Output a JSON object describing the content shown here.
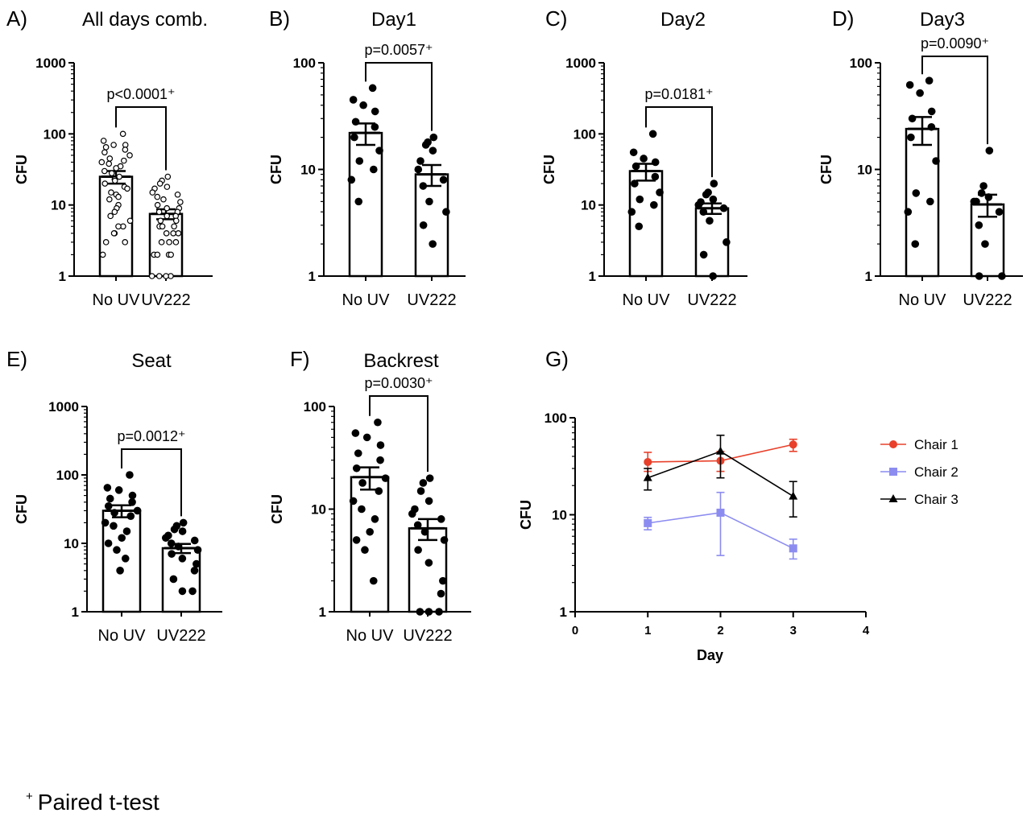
{
  "footnote": {
    "marker": "+",
    "text": "Paired t-test"
  },
  "chart_data": [
    {
      "id": "A",
      "panel_label": "A)",
      "title": "All days comb.",
      "type": "bar",
      "ylabel": "CFU",
      "yscale": "log",
      "ylim": [
        1,
        1000
      ],
      "yticks": [
        "1",
        "10",
        "100",
        "1000"
      ],
      "categories": [
        "No UV",
        "UV222"
      ],
      "series": [
        {
          "values": [
            25,
            7.5
          ],
          "sem": [
            5,
            1.2
          ]
        }
      ],
      "points": [
        [
          100,
          80,
          70,
          70,
          65,
          60,
          55,
          50,
          45,
          42,
          40,
          38,
          35,
          33,
          30,
          28,
          25,
          23,
          22,
          20,
          18,
          17,
          15,
          14,
          13,
          12,
          10,
          9,
          8,
          7,
          6,
          5,
          5,
          4,
          4,
          3,
          2,
          3
        ],
        [
          25,
          22,
          20,
          18,
          17,
          15,
          14,
          13,
          12,
          11,
          10,
          9,
          9,
          8,
          8,
          7,
          7,
          6,
          6,
          5,
          5,
          5,
          4,
          4,
          4,
          3,
          3,
          3,
          2,
          2,
          2,
          2,
          1,
          1,
          1,
          1
        ]
      ],
      "markers": "open",
      "comparison": {
        "text": "p<0.0001⁺"
      }
    },
    {
      "id": "B",
      "panel_label": "B)",
      "title": "Day1",
      "type": "bar",
      "ylabel": "CFU",
      "yscale": "log",
      "ylim": [
        1,
        100
      ],
      "yticks": [
        "1",
        "10",
        "100"
      ],
      "categories": [
        "No UV",
        "UV222"
      ],
      "series": [
        {
          "values": [
            22,
            9
          ],
          "sem": [
            5,
            2
          ]
        }
      ],
      "points": [
        [
          58,
          45,
          40,
          35,
          28,
          25,
          20,
          15,
          12,
          10,
          8,
          5
        ],
        [
          20,
          18,
          17,
          15,
          12,
          10,
          8,
          7,
          5,
          4,
          3,
          2
        ]
      ],
      "markers": "filled",
      "comparison": {
        "text": "p=0.0057⁺"
      }
    },
    {
      "id": "C",
      "panel_label": "C)",
      "title": "Day2",
      "type": "bar",
      "ylabel": "CFU",
      "yscale": "log",
      "ylim": [
        1,
        1000
      ],
      "yticks": [
        "1",
        "10",
        "100",
        "1000"
      ],
      "categories": [
        "No UV",
        "UV222"
      ],
      "series": [
        {
          "values": [
            30,
            9
          ],
          "sem": [
            8,
            1.5
          ]
        }
      ],
      "points": [
        [
          100,
          55,
          45,
          40,
          35,
          25,
          20,
          15,
          12,
          10,
          8,
          5
        ],
        [
          20,
          15,
          14,
          12,
          11,
          10,
          9,
          8,
          6,
          3,
          2,
          1
        ]
      ],
      "markers": "filled",
      "comparison": {
        "text": "p=0.0181⁺"
      }
    },
    {
      "id": "D",
      "panel_label": "D)",
      "title": "Day3",
      "type": "bar",
      "ylabel": "CFU",
      "yscale": "log",
      "ylim": [
        1,
        100
      ],
      "yticks": [
        "1",
        "10",
        "100"
      ],
      "categories": [
        "No UV",
        "UV222"
      ],
      "series": [
        {
          "values": [
            24,
            4.7
          ],
          "sem": [
            7,
            1.1
          ]
        }
      ],
      "points": [
        [
          68,
          62,
          52,
          35,
          30,
          25,
          20,
          12,
          6,
          5,
          4,
          2
        ],
        [
          15,
          7,
          6,
          5.5,
          5,
          5,
          4,
          3,
          2,
          1,
          1
        ]
      ],
      "markers": "filled",
      "comparison": {
        "text": "p=0.0090⁺"
      }
    },
    {
      "id": "E",
      "panel_label": "E)",
      "title": "Seat",
      "type": "bar",
      "ylabel": "CFU",
      "yscale": "log",
      "ylim": [
        1,
        1000
      ],
      "yticks": [
        "1",
        "10",
        "100",
        "1000"
      ],
      "categories": [
        "No UV",
        "UV222"
      ],
      "series": [
        {
          "values": [
            30,
            8.5
          ],
          "sem": [
            6,
            1.3
          ]
        }
      ],
      "points": [
        [
          100,
          65,
          60,
          50,
          45,
          40,
          35,
          30,
          28,
          25,
          20,
          18,
          15,
          12,
          10,
          8,
          6,
          4
        ],
        [
          20,
          18,
          16,
          15,
          13,
          12,
          11,
          10,
          9,
          8,
          7,
          6,
          5,
          4,
          3,
          2,
          2
        ]
      ],
      "markers": "filled",
      "comparison": {
        "text": "p=0.0012⁺"
      }
    },
    {
      "id": "F",
      "panel_label": "F)",
      "title": "Backrest",
      "type": "bar",
      "ylabel": "CFU",
      "yscale": "log",
      "ylim": [
        1,
        100
      ],
      "yticks": [
        "1",
        "10",
        "100"
      ],
      "categories": [
        "No UV",
        "UV222"
      ],
      "series": [
        {
          "values": [
            20.5,
            6.5
          ],
          "sem": [
            5,
            1.5
          ]
        }
      ],
      "points": [
        [
          70,
          55,
          50,
          42,
          35,
          30,
          25,
          20,
          18,
          15,
          12,
          10,
          8,
          6,
          5,
          4,
          2
        ],
        [
          20,
          18,
          15,
          12,
          10,
          9,
          8,
          7,
          6,
          5,
          4,
          3,
          2,
          1.5,
          1,
          1,
          1
        ]
      ],
      "markers": "filled",
      "comparison": {
        "text": "p=0.0030⁺"
      }
    },
    {
      "id": "G",
      "panel_label": "G)",
      "title": "",
      "type": "line",
      "xlabel": "Day",
      "ylabel": "CFU",
      "yscale": "log",
      "xlim": [
        0,
        4
      ],
      "ylim": [
        1,
        100
      ],
      "xticks": [
        "0",
        "1",
        "2",
        "3",
        "4"
      ],
      "yticks": [
        "1",
        "10",
        "100"
      ],
      "legend": "right",
      "series": [
        {
          "name": "Chair 1",
          "color": "#e8402a",
          "marker": "circle",
          "x": [
            1,
            2,
            3
          ],
          "y": [
            35,
            36,
            53
          ],
          "err_low": [
            28,
            28,
            45
          ],
          "err_high": [
            44,
            45,
            60
          ]
        },
        {
          "name": "Chair 2",
          "color": "#8c8cf0",
          "marker": "square",
          "x": [
            1,
            2,
            3
          ],
          "y": [
            8.2,
            10.5,
            4.5
          ],
          "err_low": [
            7,
            3.8,
            3.5
          ],
          "err_high": [
            9.4,
            17,
            5.6
          ]
        },
        {
          "name": "Chair 3",
          "color": "#000000",
          "marker": "triangle",
          "x": [
            1,
            2,
            3
          ],
          "y": [
            24,
            45,
            15.5
          ],
          "err_low": [
            18,
            24,
            9.5
          ],
          "err_high": [
            30,
            66,
            22
          ]
        }
      ]
    }
  ]
}
